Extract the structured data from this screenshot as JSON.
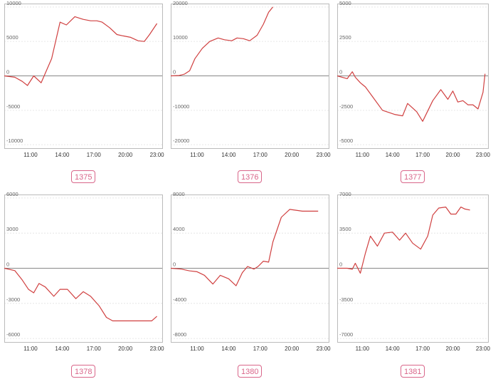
{
  "theme": {
    "line_color": "#d04040",
    "frame_color": "#bbbbbb",
    "grid_color": "#e6e6e6",
    "zero_color": "#888888",
    "badge_color": "#d9668a"
  },
  "panels": [
    {
      "id": "1375",
      "label": "1375"
    },
    {
      "id": "1376",
      "label": "1376"
    },
    {
      "id": "1377",
      "label": "1377"
    },
    {
      "id": "1378",
      "label": "1378"
    },
    {
      "id": "1380",
      "label": "1380"
    },
    {
      "id": "1381",
      "label": "1381"
    }
  ],
  "chart_data": [
    {
      "type": "line",
      "xlim": [
        8.5,
        23.5
      ],
      "ylim": [
        -10500,
        10500
      ],
      "xticks": [
        11,
        14,
        17,
        20,
        23
      ],
      "xtick_labels": [
        "11:00",
        "14:00",
        "17:00",
        "20:00",
        "23:00"
      ],
      "yticks": [
        10000,
        5000,
        0,
        -5000,
        -10000
      ],
      "ytick_labels": [
        "10000",
        "5000",
        "0",
        "-5000",
        "-10000"
      ],
      "x": [
        8.5,
        9.5,
        10.2,
        10.7,
        11.3,
        12.0,
        13.0,
        13.8,
        14.4,
        15.2,
        16.0,
        16.7,
        17.3,
        17.8,
        18.5,
        19.2,
        19.8,
        20.5,
        21.2,
        21.8,
        22.3,
        23.0
      ],
      "y": [
        0,
        -200,
        -800,
        -1400,
        0,
        -1000,
        2500,
        7800,
        7400,
        8600,
        8200,
        8000,
        8000,
        7800,
        7000,
        6000,
        5800,
        5600,
        5100,
        5000,
        6000,
        7600
      ]
    },
    {
      "type": "line",
      "xlim": [
        8.5,
        23.5
      ],
      "ylim": [
        -21000,
        21000
      ],
      "xticks": [
        11,
        14,
        17,
        20,
        23
      ],
      "xtick_labels": [
        "11:00",
        "14:00",
        "17:00",
        "20:00",
        "23:00"
      ],
      "yticks": [
        20000,
        10000,
        0,
        -10000,
        -20000
      ],
      "ytick_labels": [
        "20000",
        "10000",
        "0",
        "-10000",
        "-20000"
      ],
      "x": [
        8.5,
        9.3,
        9.8,
        10.3,
        10.8,
        11.5,
        12.2,
        13.0,
        13.6,
        14.3,
        14.8,
        15.4,
        16.0,
        16.7,
        17.3,
        17.8,
        18.2
      ],
      "y": [
        0,
        100,
        500,
        1500,
        5000,
        8000,
        10000,
        11000,
        10500,
        10200,
        11000,
        10800,
        10200,
        11800,
        15000,
        18500,
        20000
      ]
    },
    {
      "type": "line",
      "xlim": [
        8.5,
        23.5
      ],
      "ylim": [
        -5250,
        5250
      ],
      "xticks": [
        11,
        14,
        17,
        20,
        23
      ],
      "xtick_labels": [
        "11:00",
        "14:00",
        "17:00",
        "20:00",
        "23:00"
      ],
      "yticks": [
        5000,
        2500,
        0,
        -2500,
        -5000
      ],
      "ytick_labels": [
        "5000",
        "2500",
        "0",
        "-2500",
        "-5000"
      ],
      "x": [
        8.5,
        9.5,
        10.0,
        10.3,
        10.8,
        11.3,
        12.0,
        13.0,
        14.2,
        15.0,
        15.5,
        16.4,
        17.0,
        18.0,
        18.8,
        19.5,
        20.0,
        20.5,
        21.0,
        21.5,
        22.0,
        22.5,
        23.0,
        23.2
      ],
      "y": [
        0,
        -200,
        300,
        -100,
        -500,
        -800,
        -1500,
        -2500,
        -2800,
        -2900,
        -2000,
        -2600,
        -3300,
        -1800,
        -1000,
        -1700,
        -1100,
        -1900,
        -1800,
        -2100,
        -2100,
        -2400,
        -1200,
        150
      ]
    },
    {
      "type": "line",
      "xlim": [
        8.5,
        23.5
      ],
      "ylim": [
        -6300,
        6300
      ],
      "xticks": [
        11,
        14,
        17,
        20,
        23
      ],
      "xtick_labels": [
        "11:00",
        "14:00",
        "17:00",
        "20:00",
        "23:00"
      ],
      "yticks": [
        6000,
        3000,
        0,
        -3000,
        -6000
      ],
      "ytick_labels": [
        "6000",
        "3000",
        "0",
        "-3000",
        "-6000"
      ],
      "x": [
        8.5,
        9.5,
        10.2,
        10.8,
        11.3,
        11.8,
        12.4,
        13.2,
        13.8,
        14.5,
        15.3,
        16.0,
        16.7,
        17.5,
        18.2,
        18.8,
        19.3,
        19.8,
        20.5,
        21.5,
        22.5,
        23.0
      ],
      "y": [
        0,
        -200,
        -1000,
        -1800,
        -2100,
        -1300,
        -1600,
        -2400,
        -1800,
        -1800,
        -2600,
        -2000,
        -2400,
        -3200,
        -4200,
        -4500,
        -4500,
        -4500,
        -4500,
        -4500,
        -4500,
        -4100
      ]
    },
    {
      "type": "line",
      "xlim": [
        8.5,
        23.5
      ],
      "ylim": [
        -8400,
        8400
      ],
      "xticks": [
        11,
        14,
        17,
        20,
        23
      ],
      "xtick_labels": [
        "11:00",
        "14:00",
        "17:00",
        "20:00",
        "23:00"
      ],
      "yticks": [
        8000,
        4000,
        0,
        -4000,
        -8000
      ],
      "ytick_labels": [
        "8000",
        "4000",
        "0",
        "-4000",
        "-8000"
      ],
      "x": [
        8.5,
        9.5,
        10.3,
        11.0,
        11.7,
        12.5,
        13.2,
        14.0,
        14.7,
        15.3,
        15.8,
        16.4,
        16.8,
        17.3,
        17.8,
        18.2,
        19.0,
        19.8,
        21.0,
        22.5
      ],
      "y": [
        0,
        -100,
        -300,
        -400,
        -800,
        -1800,
        -800,
        -1200,
        -2000,
        -500,
        200,
        -100,
        200,
        800,
        700,
        3000,
        5800,
        6700,
        6500,
        6500
      ]
    },
    {
      "type": "line",
      "xlim": [
        8.5,
        23.5
      ],
      "ylim": [
        -7350,
        7350
      ],
      "xticks": [
        11,
        14,
        17,
        20,
        23
      ],
      "xtick_labels": [
        "11:00",
        "14:00",
        "17:00",
        "20:00",
        "23:00"
      ],
      "yticks": [
        7000,
        3500,
        0,
        -3500,
        -7000
      ],
      "ytick_labels": [
        "7000",
        "3500",
        "0",
        "-3500",
        "-7000"
      ],
      "x": [
        8.5,
        9.5,
        10.0,
        10.3,
        10.8,
        11.3,
        11.8,
        12.5,
        13.2,
        14.0,
        14.7,
        15.3,
        16.0,
        16.8,
        17.5,
        18.0,
        18.6,
        19.3,
        19.8,
        20.3,
        20.8,
        21.2,
        21.7
      ],
      "y": [
        0,
        0,
        -100,
        500,
        -500,
        1500,
        3200,
        2200,
        3500,
        3600,
        2800,
        3500,
        2500,
        1900,
        3200,
        5300,
        6000,
        6100,
        5400,
        5400,
        6100,
        5900,
        5800
      ]
    }
  ]
}
